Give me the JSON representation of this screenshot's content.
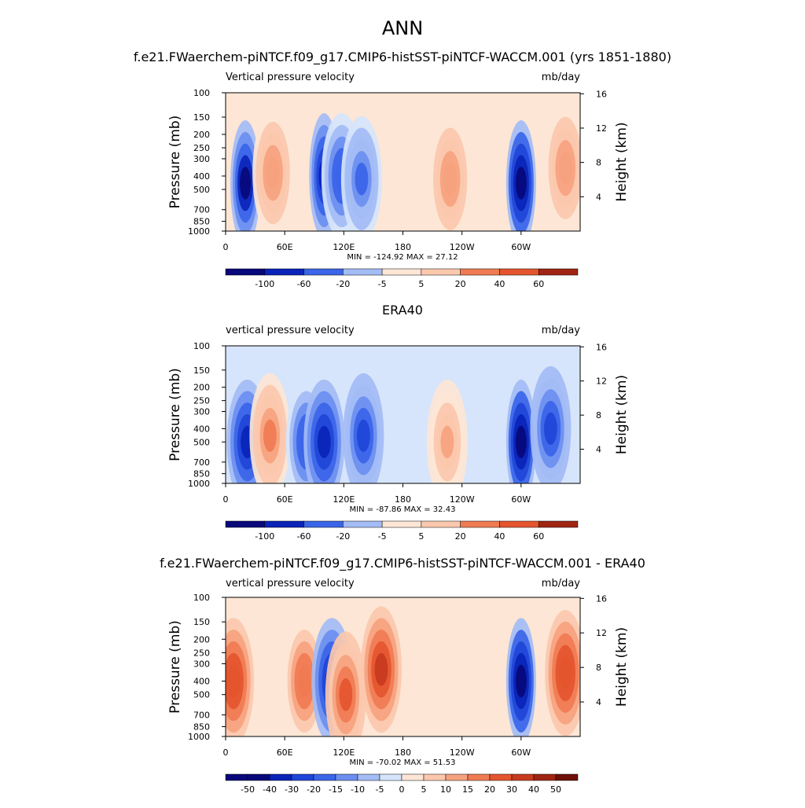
{
  "figure": {
    "title": "ANN"
  },
  "palette": {
    "wet": [
      "#08087a",
      "#0a24b8",
      "#1f45d8",
      "#3a65e8",
      "#6b8ef0",
      "#a3bcf5",
      "#d6e5fb"
    ],
    "dry": [
      "#fde6d5",
      "#fbc8ad",
      "#f6a27e",
      "#f07b52",
      "#e4552e",
      "#c73a1e",
      "#9f2512",
      "#6e0f08"
    ],
    "land": "#000000"
  },
  "chart_data": [
    {
      "type": "heatmap",
      "title": "f.e21.FWaerchem-piNTCF.f09_g17.CMIP6-histSST-piNTCF-WACCM.001 (yrs 1851-1880)",
      "left_label": "Vertical pressure velocity",
      "right_label": "mb/day",
      "ylabel": "Pressure (mb)",
      "ylabel_right": "Height (km)",
      "x_ticks": [
        "0",
        "60E",
        "120E",
        "180",
        "120W",
        "60W"
      ],
      "y_ticks": [
        "100",
        "150",
        "200",
        "250",
        "300",
        "400",
        "500",
        "700",
        "850",
        "1000"
      ],
      "y2_ticks": [
        "16",
        "12",
        "8",
        "4"
      ],
      "stats": "MIN = -124.92  MAX =  27.12",
      "colorbar_labels": [
        "-100",
        "-60",
        "-20",
        "-5",
        "5",
        "20",
        "40",
        "60"
      ],
      "ylim": [
        1000,
        100
      ],
      "features": [
        {
          "lon": 20,
          "p": 450,
          "value": -100
        },
        {
          "lon": 48,
          "p": 380,
          "value": 40
        },
        {
          "lon": 100,
          "p": 400,
          "value": -80
        },
        {
          "lon": 118,
          "p": 400,
          "value": -60
        },
        {
          "lon": 138,
          "p": 420,
          "value": -50
        },
        {
          "lon": 228,
          "p": 420,
          "value": 40
        },
        {
          "lon": 300,
          "p": 450,
          "value": -110
        },
        {
          "lon": 345,
          "p": 350,
          "value": 35
        }
      ]
    },
    {
      "type": "heatmap",
      "title": "ERA40",
      "left_label": "vertical pressure velocity",
      "right_label": "mb/day",
      "ylabel": "Pressure (mb)",
      "ylabel_right": "Height (km)",
      "x_ticks": [
        "0",
        "60E",
        "120E",
        "180",
        "120W",
        "60W"
      ],
      "y_ticks": [
        "100",
        "150",
        "200",
        "250",
        "300",
        "400",
        "500",
        "700",
        "850",
        "1000"
      ],
      "y2_ticks": [
        "16",
        "12",
        "8",
        "4"
      ],
      "stats": "MIN = -87.86  MAX =  32.43",
      "colorbar_labels": [
        "-100",
        "-60",
        "-20",
        "-5",
        "5",
        "20",
        "40",
        "60"
      ],
      "ylim": [
        1000,
        100
      ],
      "features": [
        {
          "lon": 22,
          "p": 500,
          "value": -60
        },
        {
          "lon": 45,
          "p": 450,
          "value": 30
        },
        {
          "lon": 82,
          "p": 500,
          "value": -45
        },
        {
          "lon": 100,
          "p": 500,
          "value": -60
        },
        {
          "lon": 140,
          "p": 450,
          "value": -50
        },
        {
          "lon": 225,
          "p": 500,
          "value": 20
        },
        {
          "lon": 300,
          "p": 500,
          "value": -80
        },
        {
          "lon": 330,
          "p": 400,
          "value": -50
        }
      ]
    },
    {
      "type": "heatmap",
      "title": "f.e21.FWaerchem-piNTCF.f09_g17.CMIP6-histSST-piNTCF-WACCM.001 - ERA40",
      "left_label": "vertical pressure velocity",
      "right_label": "mb/day",
      "ylabel": "Pressure (mb)",
      "ylabel_right": "Height (km)",
      "x_ticks": [
        "0",
        "60E",
        "120E",
        "180",
        "120W",
        "60W"
      ],
      "y_ticks": [
        "100",
        "150",
        "200",
        "250",
        "300",
        "400",
        "500",
        "700",
        "850",
        "1000"
      ],
      "y2_ticks": [
        "16",
        "12",
        "8",
        "4"
      ],
      "stats": "MIN = -70.02  MAX =  51.53",
      "colorbar_labels": [
        "-50",
        "-40",
        "-30",
        "-20",
        "-15",
        "-10",
        "-5",
        "0",
        "5",
        "10",
        "15",
        "20",
        "30",
        "40",
        "50"
      ],
      "ylim": [
        1000,
        100
      ],
      "features": [
        {
          "lon": 8,
          "p": 400,
          "value": 40
        },
        {
          "lon": 80,
          "p": 400,
          "value": 30
        },
        {
          "lon": 108,
          "p": 400,
          "value": -55
        },
        {
          "lon": 122,
          "p": 500,
          "value": 35
        },
        {
          "lon": 158,
          "p": 330,
          "value": 45
        },
        {
          "lon": 300,
          "p": 400,
          "value": -65
        },
        {
          "lon": 345,
          "p": 350,
          "value": 40
        }
      ]
    }
  ]
}
